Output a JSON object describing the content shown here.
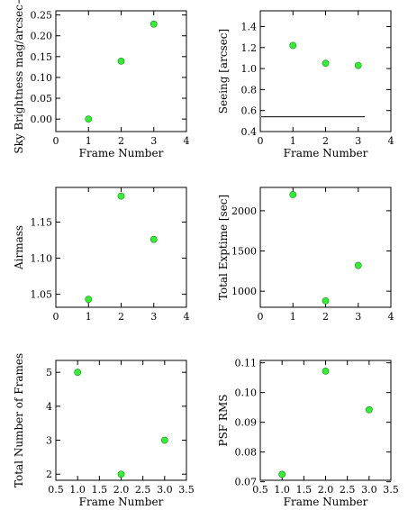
{
  "chart_data": [
    {
      "type": "scatter",
      "ylabel": "Sky Brightness mag/arcsec−2",
      "xlabel": "Frame Number",
      "xlim": [
        0,
        4
      ],
      "ylim": [
        -0.03,
        0.26
      ],
      "xticks": [
        "0",
        "1",
        "2",
        "3",
        "4"
      ],
      "yticks": [
        "0.00",
        "0.05",
        "0.10",
        "0.15",
        "0.20",
        "0.25"
      ],
      "x": [
        1,
        2,
        3
      ],
      "y": [
        0.0,
        0.139,
        0.228
      ],
      "marker_color": "#33ee33",
      "grid": false
    },
    {
      "type": "scatter",
      "ylabel": "Seeing [arcsec]",
      "xlabel": "Frame Number",
      "xlim": [
        0,
        4
      ],
      "ylim": [
        0.4,
        1.55
      ],
      "xticks": [
        "0",
        "1",
        "2",
        "3",
        "4"
      ],
      "yticks": [
        "0.4",
        "0.6",
        "0.8",
        "1.0",
        "1.2",
        "1.4"
      ],
      "x": [
        1,
        2,
        3
      ],
      "y": [
        1.22,
        1.05,
        1.03
      ],
      "reference_line": {
        "y": 0.54,
        "x_from": 0,
        "x_to": 3.2
      },
      "marker_color": "#33ee33",
      "grid": false
    },
    {
      "type": "scatter",
      "ylabel": "Airmass",
      "xlabel": "",
      "xlim": [
        0,
        4
      ],
      "ylim": [
        1.032,
        1.198
      ],
      "xticks": [
        "0",
        "1",
        "2",
        "3",
        "4"
      ],
      "yticks": [
        "1.05",
        "1.10",
        "1.15"
      ],
      "x": [
        1,
        2,
        3
      ],
      "y": [
        1.043,
        1.186,
        1.126
      ],
      "marker_color": "#33ee33",
      "grid": false
    },
    {
      "type": "scatter",
      "ylabel": "Total Exptime [sec]",
      "xlabel": "",
      "xlim": [
        0,
        4
      ],
      "ylim": [
        800,
        2290
      ],
      "xticks": [
        "0",
        "1",
        "2",
        "3",
        "4"
      ],
      "yticks": [
        "1000",
        "1500",
        "2000"
      ],
      "x": [
        1,
        2,
        3
      ],
      "y": [
        2200,
        880,
        1320
      ],
      "marker_color": "#33ee33",
      "grid": false
    },
    {
      "type": "scatter",
      "ylabel": "Total Number of Frames",
      "xlabel": "Frame Number",
      "xlim": [
        0.5,
        3.5
      ],
      "ylim": [
        1.82,
        5.35
      ],
      "xticks": [
        "0.5",
        "1.0",
        "1.5",
        "2.0",
        "2.5",
        "3.0",
        "3.5"
      ],
      "yticks": [
        "2",
        "3",
        "4",
        "5"
      ],
      "x": [
        1,
        2,
        3
      ],
      "y": [
        5,
        2,
        3
      ],
      "marker_color": "#33ee33",
      "grid": false
    },
    {
      "type": "scatter",
      "ylabel": "PSF RMS",
      "xlabel": "Frame Number",
      "xlim": [
        0.5,
        3.5
      ],
      "ylim": [
        0.0705,
        0.1108
      ],
      "xticks": [
        "0.5",
        "1.0",
        "1.5",
        "2.0",
        "2.5",
        "3.0",
        "3.5"
      ],
      "yticks": [
        "0.07",
        "0.08",
        "0.09",
        "0.10",
        "0.11"
      ],
      "x": [
        1,
        2,
        3
      ],
      "y": [
        0.0725,
        0.1072,
        0.0942
      ],
      "marker_color": "#33ee33",
      "grid": false
    }
  ]
}
